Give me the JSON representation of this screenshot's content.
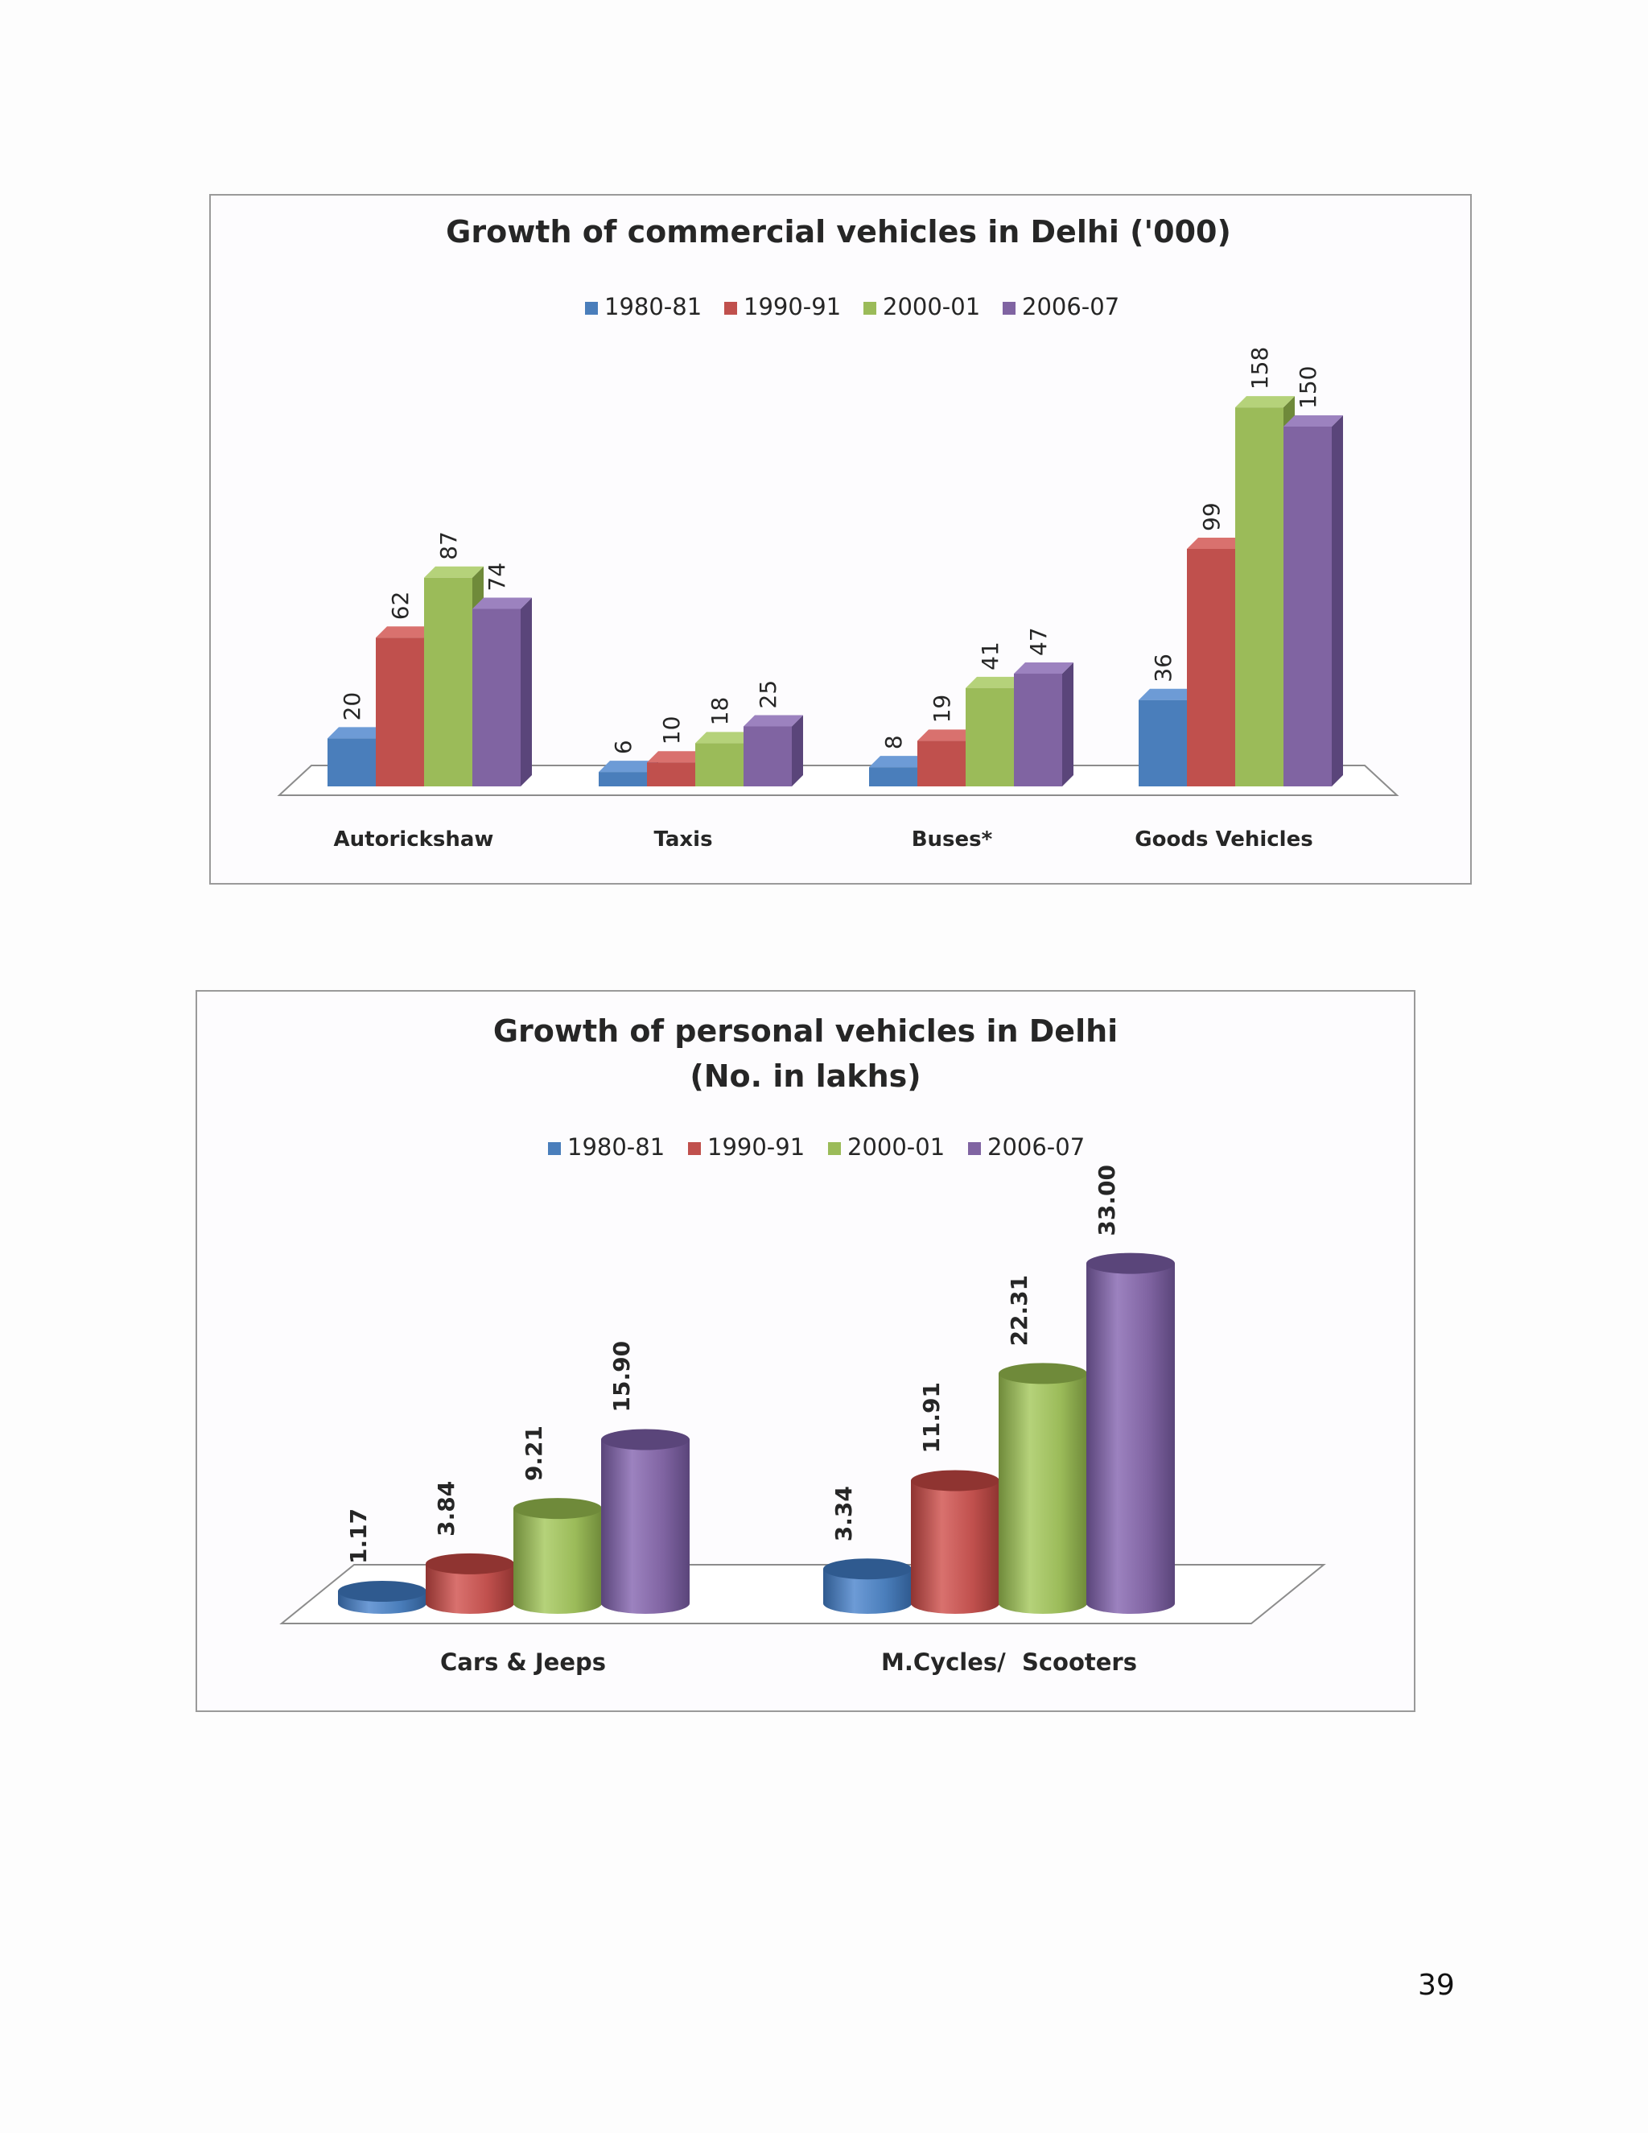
{
  "page": {
    "number": "39"
  },
  "chart_data": [
    {
      "type": "bar",
      "style": "3d-column",
      "title": "Growth of commercial vehicles  in Delhi ('000)",
      "categories": [
        "Autorickshaw",
        "Taxis",
        "Buses*",
        "Goods Vehicles"
      ],
      "series": [
        {
          "name": "1980-81",
          "values": [
            20,
            6,
            8,
            36
          ]
        },
        {
          "name": "1990-91",
          "values": [
            62,
            10,
            19,
            99
          ]
        },
        {
          "name": "2000-01",
          "values": [
            87,
            18,
            41,
            158
          ]
        },
        {
          "name": "2006-07",
          "values": [
            74,
            25,
            47,
            150
          ]
        }
      ],
      "value_labels": [
        [
          "20",
          "6",
          "8",
          "36"
        ],
        [
          "62",
          "10",
          "19",
          "99"
        ],
        [
          "87",
          "18",
          "41",
          "158"
        ],
        [
          "74",
          "25",
          "47",
          "150"
        ]
      ],
      "xlabel": "",
      "ylabel": "",
      "ylim": [
        0,
        160
      ],
      "grid": false,
      "legend": "top"
    },
    {
      "type": "bar",
      "style": "3d-cylinder",
      "title": [
        "Growth of personal vehicles in Delhi",
        "(No. in lakhs)"
      ],
      "categories": [
        "Cars & Jeeps",
        "M.Cycles/  Scooters"
      ],
      "series": [
        {
          "name": "1980-81",
          "values": [
            1.17,
            3.34
          ]
        },
        {
          "name": "1990-91",
          "values": [
            3.84,
            11.91
          ]
        },
        {
          "name": "2000-01",
          "values": [
            9.21,
            22.31
          ]
        },
        {
          "name": "2006-07",
          "values": [
            15.9,
            33.0
          ]
        }
      ],
      "value_labels": [
        [
          "1.17",
          "3.34"
        ],
        [
          "3.84",
          "11.91"
        ],
        [
          "9.21",
          "22.31"
        ],
        [
          "15.90",
          "33.00"
        ]
      ],
      "xlabel": "",
      "ylabel": "",
      "ylim": [
        0,
        33
      ],
      "grid": false,
      "legend": "top"
    }
  ],
  "colors": {
    "series": [
      "#4a7ebb",
      "#c0504d",
      "#9bbb59",
      "#8064a2"
    ],
    "series_dark": [
      "#2f5a8f",
      "#8f3431",
      "#6f8a3a",
      "#5a457a"
    ],
    "series_light": [
      "#6d9bd6",
      "#d9716e",
      "#b5d27a",
      "#9c82bf"
    ],
    "text": "#262626"
  }
}
